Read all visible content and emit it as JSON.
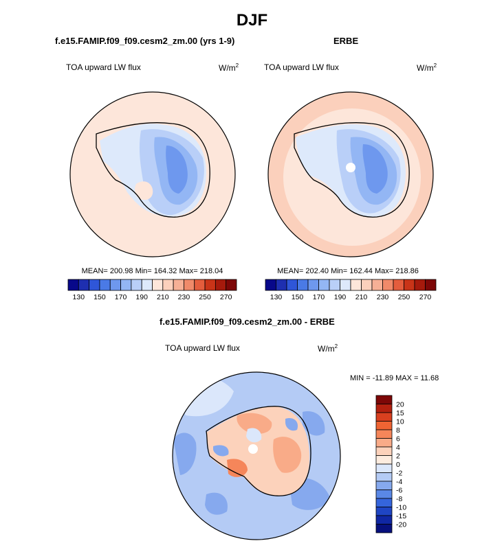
{
  "title": "DJF",
  "chart_data": [
    {
      "type": "polar_contour",
      "projection": "south_polar_stereographic",
      "title": "f.e15.FAMIP.f09_f09.cesm2_zm.00 (yrs 1-9)",
      "variable": "TOA upward LW flux",
      "units_base": "W/m",
      "units_exp": "2",
      "stats": {
        "mean": "200.98",
        "min": "164.32",
        "max": "218.04"
      },
      "stats_text": "MEAN= 200.98  Min= 164.32  Max= 218.04",
      "colorbar": {
        "orientation": "horizontal",
        "levels": [
          130,
          140,
          150,
          160,
          170,
          180,
          190,
          200,
          210,
          220,
          230,
          240,
          250,
          260,
          270
        ],
        "tick_labels": [
          "130",
          "150",
          "170",
          "190",
          "210",
          "230",
          "250",
          "270"
        ],
        "colors": [
          "#08088a",
          "#1e2fb0",
          "#2f56d8",
          "#4a7ae6",
          "#6e98ee",
          "#93b6f4",
          "#b9cff8",
          "#dde9fb",
          "#fde6da",
          "#fbd0bc",
          "#f6b096",
          "#f08a6a",
          "#e45d3d",
          "#c93418",
          "#a61a0c",
          "#7d0707"
        ]
      }
    },
    {
      "type": "polar_contour",
      "projection": "south_polar_stereographic",
      "title": "ERBE",
      "variable": "TOA upward LW flux",
      "units_base": "W/m",
      "units_exp": "2",
      "stats": {
        "mean": "202.40",
        "min": "162.44",
        "max": "218.86"
      },
      "stats_text": "MEAN= 202.40  Min= 162.44  Max= 218.86",
      "colorbar": {
        "orientation": "horizontal",
        "levels": [
          130,
          140,
          150,
          160,
          170,
          180,
          190,
          200,
          210,
          220,
          230,
          240,
          250,
          260,
          270
        ],
        "tick_labels": [
          "130",
          "150",
          "170",
          "190",
          "210",
          "230",
          "250",
          "270"
        ],
        "colors": [
          "#08088a",
          "#1e2fb0",
          "#2f56d8",
          "#4a7ae6",
          "#6e98ee",
          "#93b6f4",
          "#b9cff8",
          "#dde9fb",
          "#fde6da",
          "#fbd0bc",
          "#f6b096",
          "#f08a6a",
          "#e45d3d",
          "#c93418",
          "#a61a0c",
          "#7d0707"
        ]
      }
    },
    {
      "type": "polar_contour_difference",
      "projection": "south_polar_stereographic",
      "title": "f.e15.FAMIP.f09_f09.cesm2_zm.00 - ERBE",
      "variable": "TOA upward LW flux",
      "units_base": "W/m",
      "units_exp": "2",
      "stats": {
        "min": "-11.89",
        "max": "11.68"
      },
      "stats_text": "MIN = -11.89 MAX =  11.68",
      "colorbar": {
        "orientation": "vertical",
        "levels": [
          20,
          15,
          10,
          8,
          6,
          4,
          2,
          0,
          -2,
          -4,
          -6,
          -8,
          -10,
          -15,
          -20
        ],
        "tick_labels": [
          "20",
          "15",
          "10",
          "8",
          "6",
          "4",
          "2",
          "0",
          "-2",
          "-4",
          "-6",
          "-8",
          "-10",
          "-15",
          "-20"
        ],
        "colors": [
          "#7d0707",
          "#b3200f",
          "#d9401f",
          "#ef6433",
          "#f5865a",
          "#f9ab88",
          "#fcd2bb",
          "#fdecdf",
          "#dbe7fb",
          "#b4cbf5",
          "#86a9ee",
          "#5a88e6",
          "#3565dc",
          "#1f45c4",
          "#1027a4",
          "#07107d"
        ]
      }
    }
  ]
}
